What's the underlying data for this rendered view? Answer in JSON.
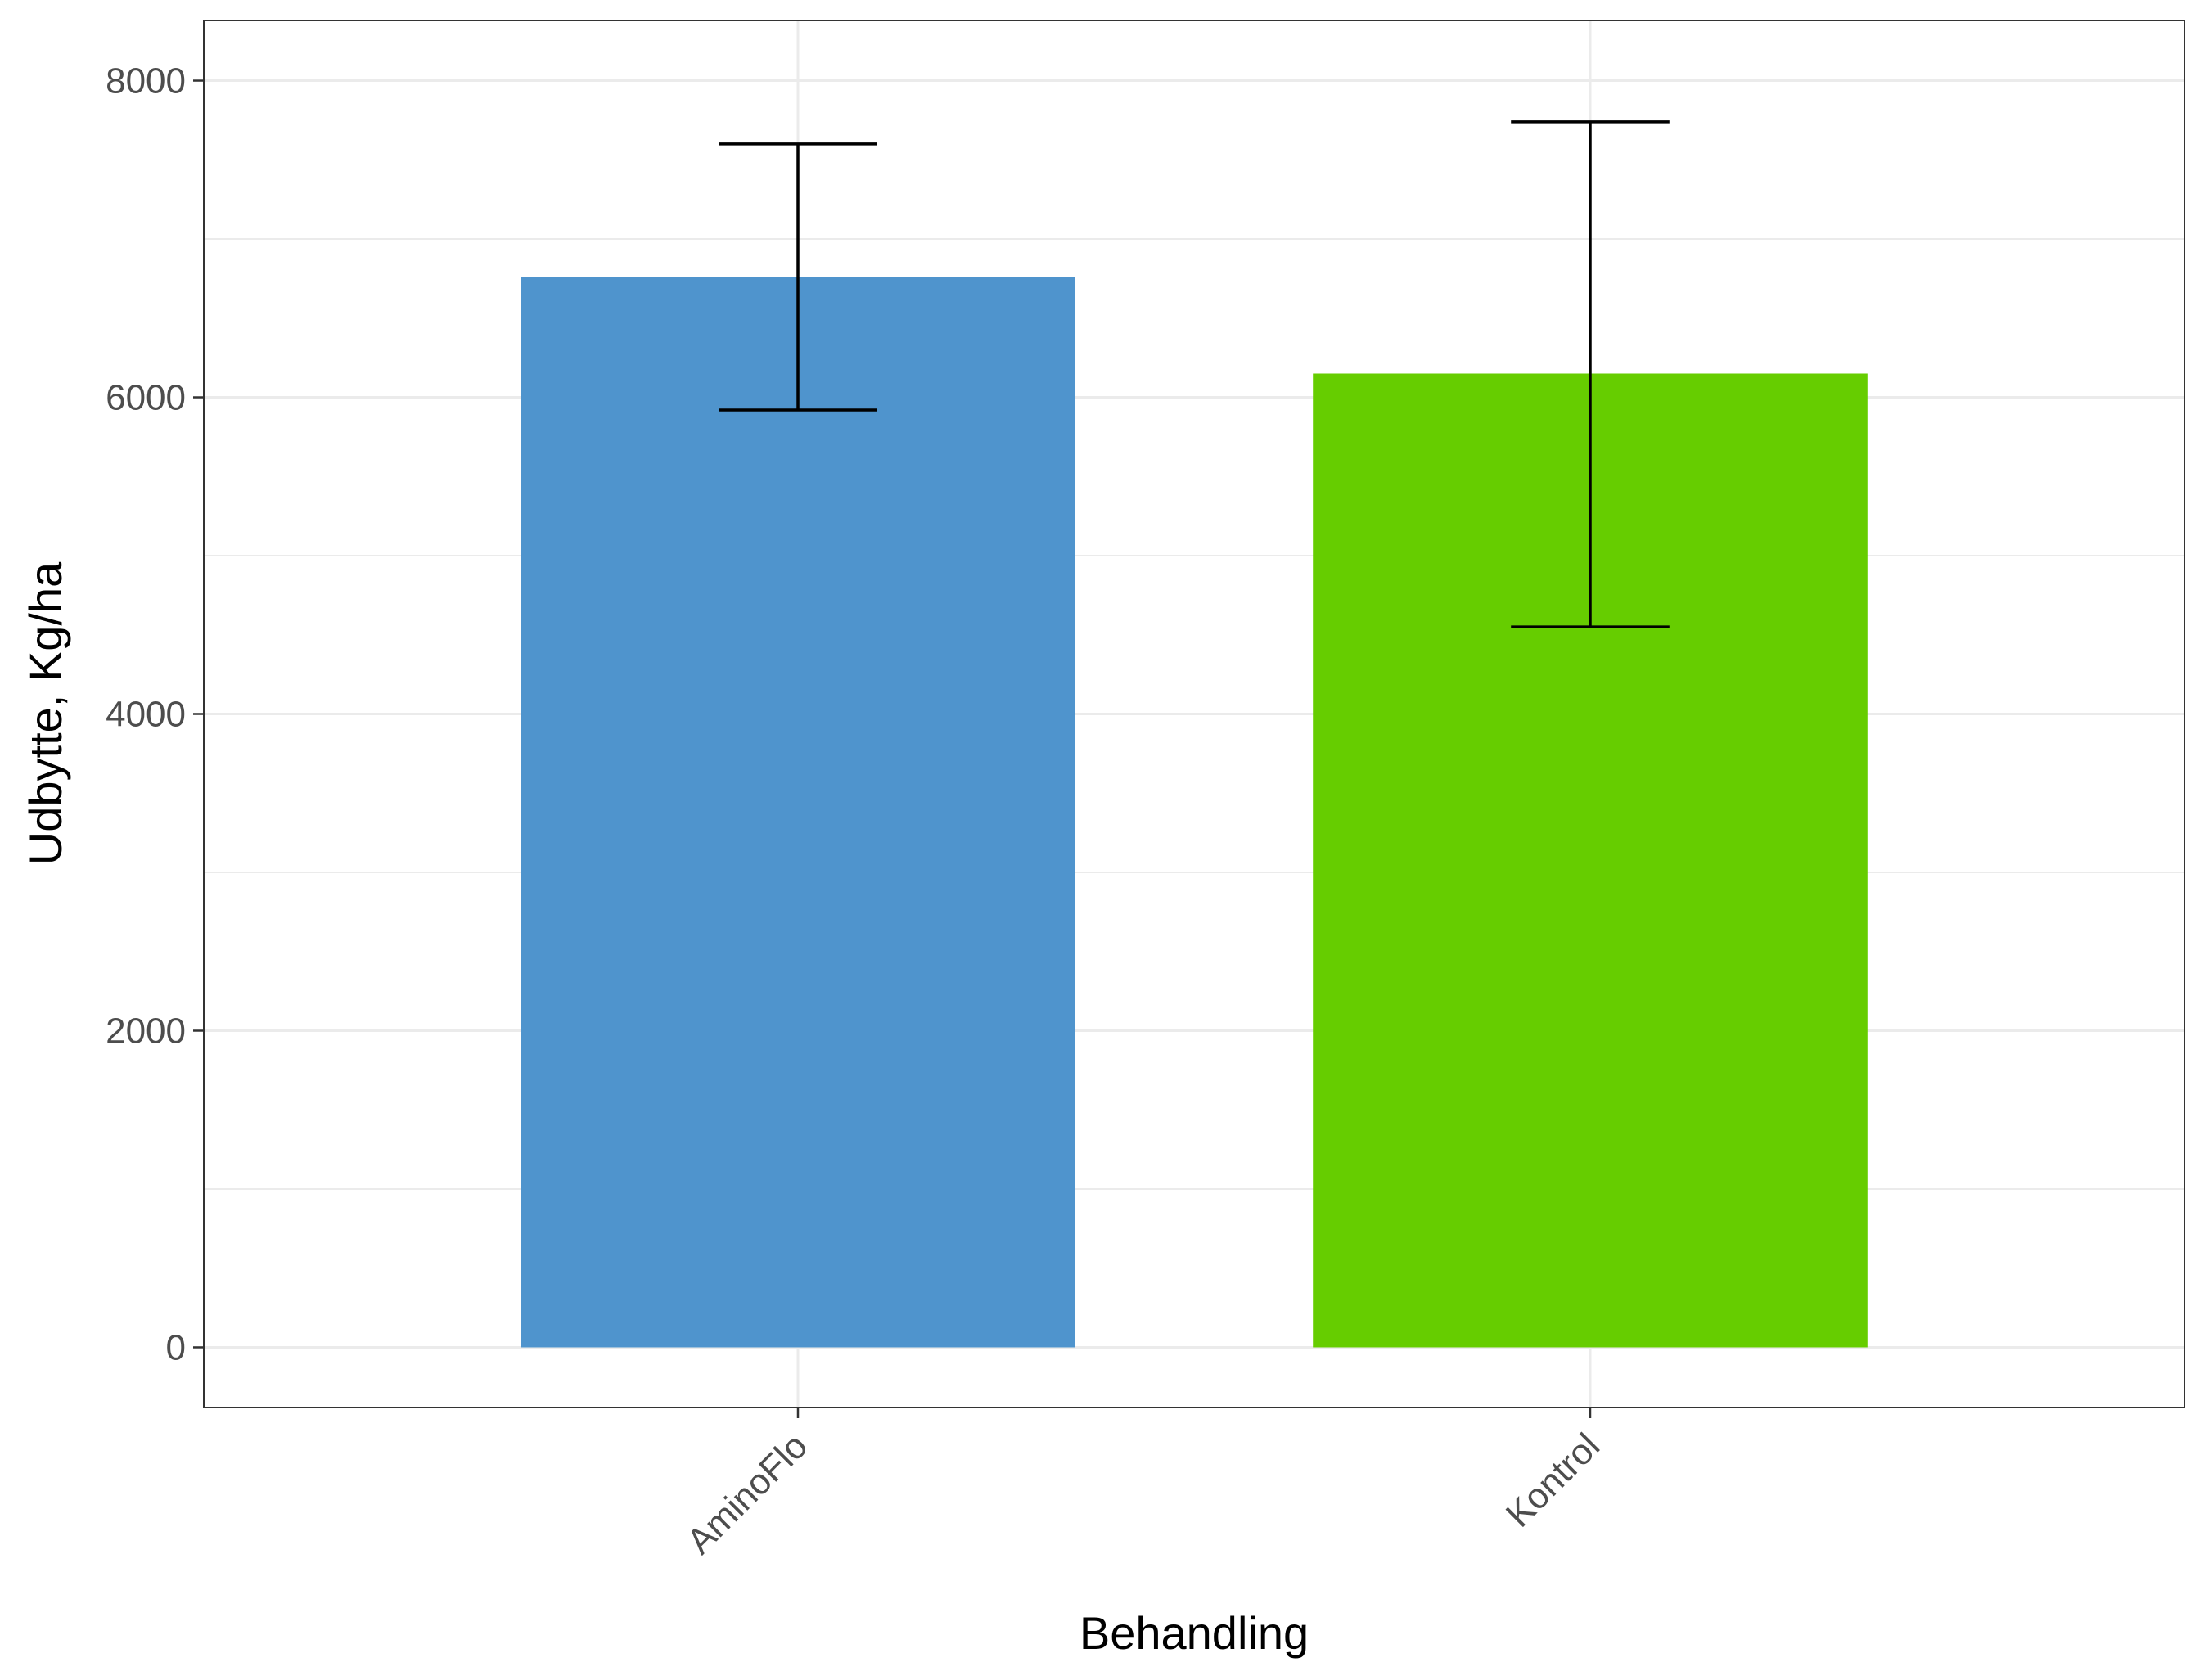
{
  "chart_data": {
    "type": "bar",
    "categories": [
      "AminoFlo",
      "Kontrol"
    ],
    "values": [
      6760,
      6150
    ],
    "error_low": [
      5920,
      4550
    ],
    "error_high": [
      7600,
      7740
    ],
    "colors": [
      "#4f94cd",
      "#66cd00"
    ],
    "xlabel": "Behandling",
    "ylabel": "Udbytte, Kg/ha",
    "ylim": [
      -380,
      8380
    ],
    "yticks": [
      0,
      2000,
      4000,
      6000,
      8000
    ],
    "grid": true,
    "legend": "none"
  }
}
